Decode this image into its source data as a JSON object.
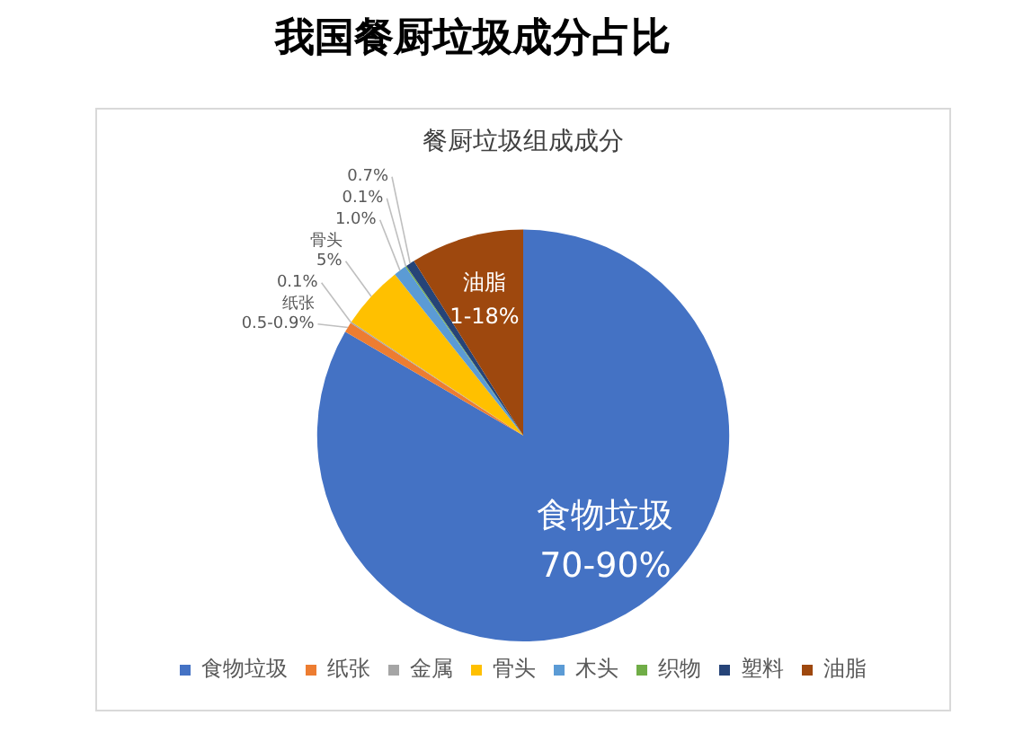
{
  "chart_data": {
    "type": "pie",
    "title": "我国餐厨垃圾成分占比",
    "subtitle": "餐厨垃圾组成成分",
    "categories": [
      "食物垃圾",
      "纸张",
      "金属",
      "骨头",
      "木头",
      "织物",
      "塑料",
      "油脂"
    ],
    "values": [
      83.4,
      0.8,
      0.1,
      5,
      1.0,
      0.1,
      0.7,
      8.9
    ],
    "colors": [
      "#4472c4",
      "#ed7d31",
      "#a5a5a5",
      "#ffc000",
      "#5b9bd5",
      "#70ad47",
      "#264478",
      "#9e480e"
    ],
    "annotations": [
      {
        "text": "食物垃圾\n70-90%",
        "x": "食物垃圾"
      },
      {
        "text": "纸张\n0.5-0.9%",
        "x": "纸张"
      },
      {
        "text": "0.1%",
        "x": "金属"
      },
      {
        "text": "骨头\n5%",
        "x": "骨头"
      },
      {
        "text": "1.0%",
        "x": "木头"
      },
      {
        "text": "0.1%",
        "x": "织物"
      },
      {
        "text": "0.7%",
        "x": "塑料"
      },
      {
        "text": "油脂\n1-18%",
        "x": "油脂"
      }
    ],
    "legend": "bottom"
  }
}
